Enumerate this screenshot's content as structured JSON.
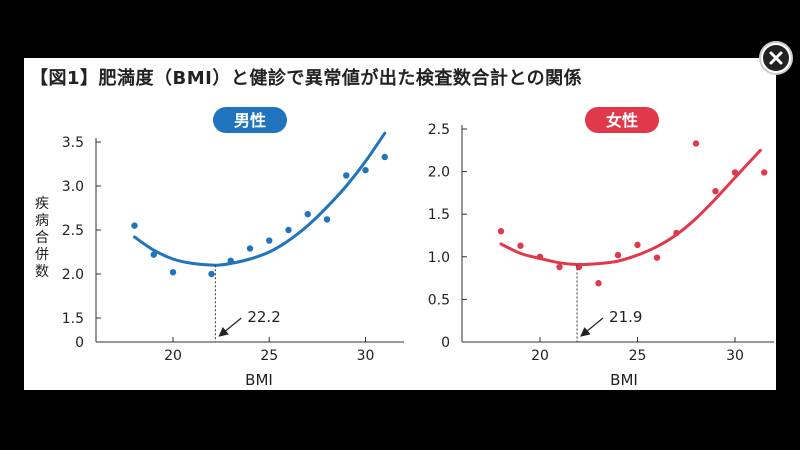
{
  "figure": {
    "title": "【図1】肥満度（BMI）と健診で異常値が出た検査数合計との関係"
  },
  "close_button": {
    "icon": "close-icon"
  },
  "colors": {
    "male": "#1f74bd",
    "female": "#e0394c",
    "background": "#000000",
    "card": "#ffffff"
  },
  "chart_data": [
    {
      "type": "scatter",
      "title": "男性",
      "xlabel": "BMI",
      "ylabel": "疾病合併数",
      "xlim": [
        16,
        32
      ],
      "ylim": [
        0,
        3.5
      ],
      "yaxis_break": true,
      "xticks": [
        "20",
        "25",
        "30"
      ],
      "xtick_values": [
        20,
        25,
        30
      ],
      "yticks": [
        "0",
        "1.5",
        "2.0",
        "2.5",
        "3.0",
        "3.5"
      ],
      "ytick_values": [
        0,
        1.5,
        2.0,
        2.5,
        3.0,
        3.5
      ],
      "grid": false,
      "series": [
        {
          "type": "scatter",
          "x": [
            18.0,
            19.0,
            20.0,
            22.0,
            23.0,
            24.0,
            25.0,
            26.0,
            27.0,
            28.0,
            29.0,
            30.0,
            31.0
          ],
          "y": [
            2.55,
            2.22,
            2.02,
            2.0,
            2.15,
            2.29,
            2.38,
            2.5,
            2.68,
            2.62,
            3.12,
            3.18,
            3.33
          ]
        },
        {
          "type": "line",
          "x": [
            18.0,
            19.0,
            20.0,
            21.0,
            22.2,
            23.0,
            24.0,
            25.0,
            26.0,
            27.0,
            28.0,
            29.0,
            30.0,
            31.0
          ],
          "y": [
            2.42,
            2.27,
            2.17,
            2.12,
            2.1,
            2.12,
            2.17,
            2.25,
            2.38,
            2.55,
            2.76,
            3.0,
            3.28,
            3.6
          ]
        }
      ],
      "annotations": [
        {
          "text": "22.2",
          "x": 22.2
        }
      ]
    },
    {
      "type": "scatter",
      "title": "女性",
      "xlabel": "BMI",
      "ylabel": "",
      "xlim": [
        16,
        32
      ],
      "ylim": [
        0,
        2.5
      ],
      "yaxis_break": false,
      "xticks": [
        "20",
        "25",
        "30"
      ],
      "xtick_values": [
        20,
        25,
        30
      ],
      "yticks": [
        "0",
        "0.5",
        "1.0",
        "1.5",
        "2.0",
        "2.5"
      ],
      "ytick_values": [
        0,
        0.5,
        1.0,
        1.5,
        2.0,
        2.5
      ],
      "grid": false,
      "series": [
        {
          "type": "scatter",
          "x": [
            18.0,
            19.0,
            20.0,
            21.0,
            22.0,
            23.0,
            24.0,
            25.0,
            26.0,
            27.0,
            28.0,
            29.0,
            30.0,
            31.5
          ],
          "y": [
            1.3,
            1.13,
            1.0,
            0.88,
            0.88,
            0.69,
            1.02,
            1.14,
            0.99,
            1.28,
            2.33,
            1.77,
            1.99,
            1.99
          ]
        },
        {
          "type": "line",
          "x": [
            18.0,
            19.0,
            20.0,
            21.0,
            21.9,
            23.0,
            24.0,
            25.0,
            26.0,
            27.0,
            28.0,
            29.0,
            30.0,
            31.3
          ],
          "y": [
            1.15,
            1.04,
            0.98,
            0.93,
            0.91,
            0.92,
            0.95,
            1.02,
            1.12,
            1.26,
            1.45,
            1.68,
            1.93,
            2.25
          ]
        }
      ],
      "annotations": [
        {
          "text": "21.9",
          "x": 21.9
        }
      ]
    }
  ]
}
